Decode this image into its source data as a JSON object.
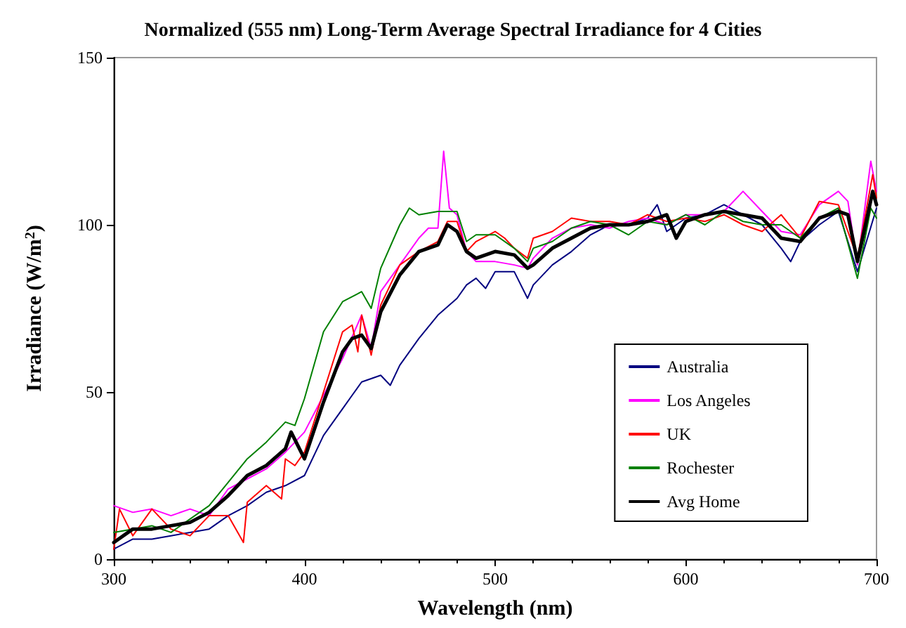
{
  "chart_data": {
    "type": "line",
    "title": "Normalized (555 nm) Long-Term Average Spectral Irradiance for 4 Cities",
    "xlabel": "Wavelength (nm)",
    "ylabel": "Irradiance (W/m$^{2}$)",
    "xlim": [
      300,
      700
    ],
    "xticks": [
      300,
      400,
      500,
      600,
      700
    ],
    "ylim": [
      0,
      150
    ],
    "yticks": [
      0,
      50,
      100,
      150
    ],
    "grid": false,
    "legend": "right",
    "marker": "none",
    "line_style": "solid",
    "series": [
      {
        "name": "Australia",
        "color": "#000080",
        "x": [
          300,
          310,
          320,
          330,
          340,
          350,
          360,
          370,
          380,
          390,
          400,
          410,
          420,
          425,
          430,
          440,
          445,
          450,
          460,
          470,
          480,
          485,
          490,
          495,
          500,
          510,
          517,
          520,
          530,
          540,
          550,
          560,
          570,
          580,
          585,
          590,
          600,
          610,
          620,
          630,
          640,
          650,
          655,
          660,
          670,
          680,
          690,
          700
        ],
        "values": [
          3,
          6,
          6,
          7,
          8,
          9,
          13,
          16,
          20,
          22,
          25,
          37,
          45,
          49,
          53,
          55,
          52,
          58,
          66,
          73,
          78,
          82,
          84,
          81,
          86,
          86,
          78,
          82,
          88,
          92,
          97,
          100,
          100,
          102,
          106,
          98,
          102,
          103,
          106,
          103,
          100,
          93,
          89,
          95,
          100,
          104,
          86,
          105
        ]
      },
      {
        "name": "Los Angeles",
        "color": "#ff00ff",
        "x": [
          300,
          310,
          320,
          330,
          340,
          350,
          360,
          370,
          380,
          390,
          400,
          410,
          420,
          430,
          435,
          440,
          450,
          460,
          465,
          470,
          473,
          476,
          480,
          485,
          490,
          500,
          510,
          517,
          520,
          530,
          540,
          550,
          560,
          570,
          580,
          590,
          600,
          610,
          620,
          630,
          640,
          650,
          660,
          670,
          680,
          685,
          690,
          697,
          700
        ],
        "values": [
          16,
          14,
          15,
          13,
          15,
          13,
          21,
          24,
          27,
          32,
          38,
          49,
          60,
          73,
          63,
          80,
          88,
          96,
          99,
          99,
          122,
          105,
          103,
          92,
          89,
          89,
          88,
          87,
          90,
          96,
          99,
          100,
          99,
          101,
          102,
          100,
          103,
          103,
          104,
          110,
          104,
          98,
          97,
          106,
          110,
          107,
          88,
          119,
          110
        ]
      },
      {
        "name": "UK",
        "color": "#ff0000",
        "x": [
          300,
          303,
          310,
          320,
          330,
          340,
          350,
          360,
          368,
          370,
          380,
          388,
          390,
          395,
          400,
          410,
          420,
          425,
          428,
          430,
          435,
          440,
          450,
          460,
          470,
          475,
          480,
          485,
          490,
          500,
          505,
          510,
          517,
          520,
          530,
          540,
          550,
          560,
          570,
          580,
          590,
          600,
          610,
          620,
          630,
          640,
          650,
          660,
          670,
          680,
          690,
          698,
          700
        ],
        "values": [
          3,
          15,
          7,
          15,
          9,
          7,
          13,
          13,
          5,
          17,
          22,
          18,
          30,
          28,
          32,
          50,
          68,
          70,
          62,
          73,
          61,
          76,
          88,
          92,
          95,
          101,
          101,
          92,
          95,
          98,
          96,
          93,
          90,
          96,
          98,
          102,
          101,
          101,
          100,
          103,
          101,
          102,
          101,
          103,
          100,
          98,
          103,
          96,
          107,
          106,
          90,
          115,
          108
        ]
      },
      {
        "name": "Rochester",
        "color": "#008000",
        "x": [
          300,
          310,
          320,
          330,
          340,
          350,
          360,
          370,
          380,
          390,
          395,
          400,
          410,
          420,
          430,
          435,
          440,
          450,
          455,
          460,
          470,
          480,
          485,
          490,
          500,
          510,
          517,
          520,
          530,
          540,
          550,
          560,
          570,
          580,
          590,
          600,
          610,
          620,
          630,
          640,
          650,
          660,
          670,
          680,
          690,
          697,
          700
        ],
        "values": [
          8,
          9,
          10,
          8,
          12,
          16,
          23,
          30,
          35,
          41,
          40,
          48,
          68,
          77,
          80,
          75,
          87,
          100,
          105,
          103,
          104,
          104,
          95,
          97,
          97,
          93,
          89,
          93,
          95,
          99,
          101,
          100,
          97,
          101,
          100,
          103,
          100,
          104,
          101,
          100,
          100,
          96,
          102,
          105,
          84,
          105,
          102
        ]
      },
      {
        "name": "Avg Home",
        "color": "#000000",
        "x": [
          300,
          310,
          320,
          330,
          340,
          350,
          360,
          370,
          380,
          390,
          393,
          400,
          410,
          420,
          425,
          430,
          435,
          440,
          450,
          460,
          470,
          475,
          480,
          485,
          490,
          500,
          510,
          517,
          520,
          530,
          540,
          550,
          560,
          570,
          580,
          590,
          595,
          600,
          610,
          620,
          630,
          640,
          650,
          660,
          670,
          680,
          685,
          690,
          695,
          698,
          700
        ],
        "values": [
          5,
          9,
          9,
          10,
          11,
          14,
          19,
          25,
          28,
          33,
          38,
          30,
          47,
          62,
          66,
          67,
          63,
          74,
          85,
          92,
          94,
          100,
          98,
          92,
          90,
          92,
          91,
          87,
          88,
          93,
          96,
          99,
          100,
          100,
          101,
          103,
          96,
          101,
          103,
          104,
          103,
          102,
          96,
          95,
          102,
          104,
          103,
          89,
          102,
          110,
          106
        ]
      }
    ]
  }
}
